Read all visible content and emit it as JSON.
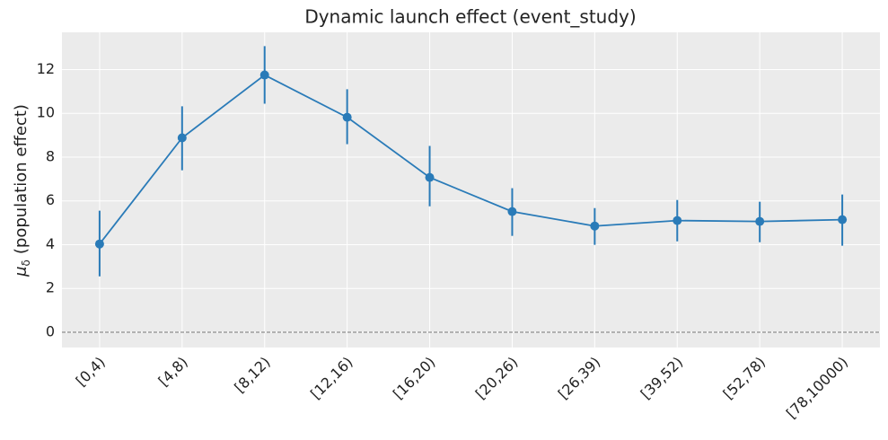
{
  "chart_data": {
    "type": "line",
    "title": "Dynamic launch effect (event_study)",
    "ylabel_symbol": "μ",
    "ylabel_subscript": "δ",
    "ylabel": "(population effect)",
    "categories": [
      "[0,4)",
      "[4,8)",
      "[8,12)",
      "[12,16)",
      "[16,20)",
      "[20,26)",
      "[26,39)",
      "[39,52)",
      "[52,78)",
      "[78,10000)"
    ],
    "series": [
      {
        "color": "#2a7bb8",
        "values": [
          4.03,
          8.88,
          11.75,
          9.82,
          7.07,
          5.51,
          4.85,
          5.1,
          5.06,
          5.14
        ],
        "lower": [
          2.55,
          7.4,
          10.44,
          8.59,
          5.75,
          4.4,
          3.99,
          4.15,
          4.11,
          3.95
        ],
        "upper": [
          5.55,
          10.32,
          13.07,
          11.1,
          8.51,
          6.58,
          5.67,
          6.04,
          5.96,
          6.29
        ]
      }
    ],
    "ylim": [
      -0.7,
      13.7
    ],
    "yticks": [
      0,
      2,
      4,
      6,
      8,
      10,
      12
    ],
    "grid": true,
    "reference_line": 0
  }
}
